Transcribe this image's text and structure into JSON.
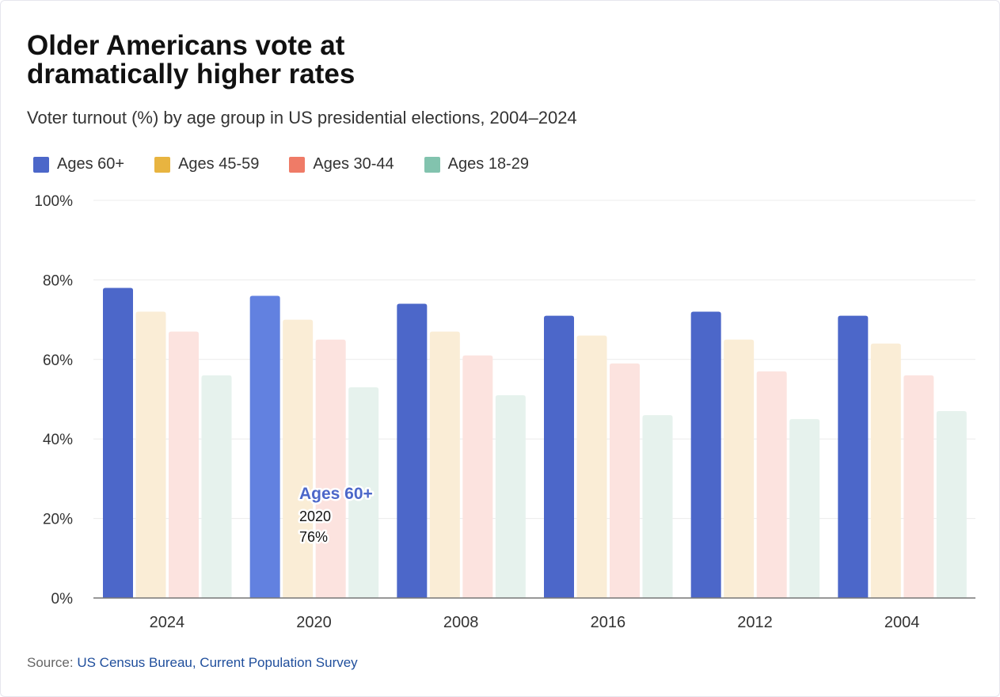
{
  "chart_data": {
    "type": "bar",
    "title": "Older Americans vote at dramatically higher rates",
    "subtitle": "Voter turnout (%) by age group in US presidential elections, 2004–2024",
    "categories": [
      "2024",
      "2020",
      "2008",
      "2016",
      "2012",
      "2004"
    ],
    "series": [
      {
        "name": "Ages 60+",
        "color": "#4c67c9",
        "values": [
          78,
          76,
          74,
          71,
          72,
          71
        ]
      },
      {
        "name": "Ages 45-59",
        "color": "#e8b440",
        "faded_color": "#faedd6",
        "values": [
          72,
          70,
          67,
          66,
          65,
          64
        ]
      },
      {
        "name": "Ages 30-44",
        "color": "#ef7b67",
        "faded_color": "#fce3df",
        "values": [
          67,
          65,
          61,
          59,
          57,
          56
        ]
      },
      {
        "name": "Ages 18-29",
        "color": "#82c3ae",
        "faded_color": "#e6f2ed",
        "values": [
          56,
          53,
          51,
          46,
          45,
          47
        ]
      }
    ],
    "ylim": [
      0,
      100
    ],
    "yticks": [
      0,
      20,
      40,
      60,
      80,
      100
    ],
    "ytick_labels": [
      "0%",
      "20%",
      "40%",
      "60%",
      "80%",
      "100%"
    ],
    "grid": true,
    "legend": "top-left",
    "highlight": {
      "series": "Ages 60+",
      "category": "2020",
      "value": "76%",
      "color": "#6281e0"
    }
  },
  "source": {
    "label": "Source:",
    "link_text": "US Census Bureau, Current Population Survey"
  }
}
